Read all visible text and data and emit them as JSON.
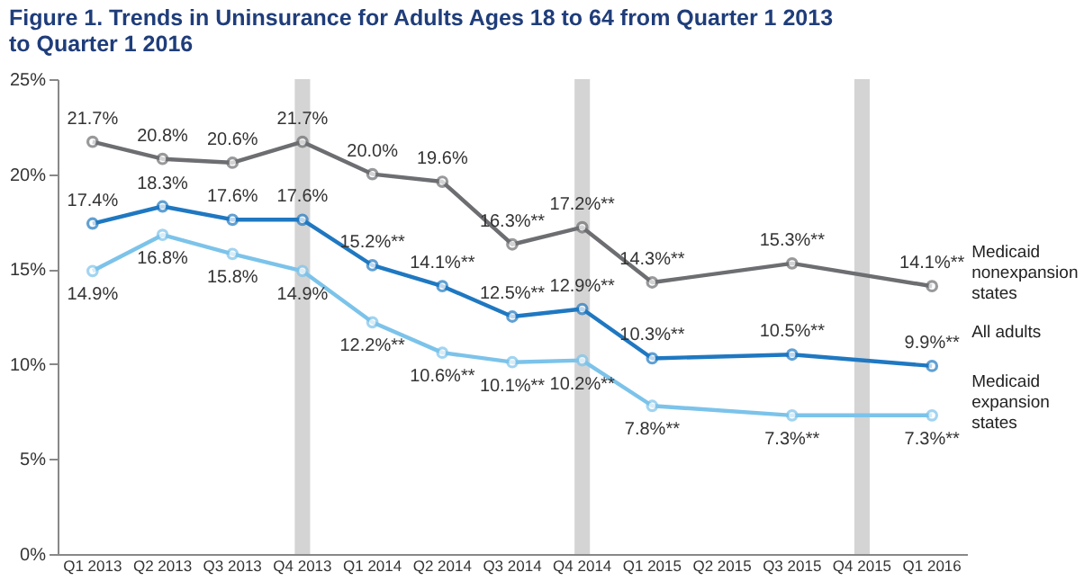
{
  "chart_data": {
    "type": "line",
    "title": "Figure 1. Trends in Uninsurance for Adults Ages 18 to 64 from Quarter 1 2013 to Quarter 1 2016",
    "categories": [
      "Q1 2013",
      "Q2 2013",
      "Q3 2013",
      "Q4 2013",
      "Q1 2014",
      "Q2 2014",
      "Q3 2014",
      "Q4 2014",
      "Q1 2015",
      "Q2 2015",
      "Q3 2015",
      "Q4 2015",
      "Q1 2016"
    ],
    "series": [
      {
        "name": "Medicaid nonexpansion states",
        "color": "#6d6e71",
        "values": [
          21.7,
          20.8,
          20.6,
          21.7,
          20.0,
          19.6,
          16.3,
          17.2,
          14.3,
          null,
          15.3,
          null,
          14.1
        ],
        "value_labels": [
          "21.7%",
          "20.8%",
          "20.6%",
          "21.7%",
          "20.0%",
          "19.6%",
          "16.3%**",
          "17.2%**",
          "14.3%**",
          null,
          "15.3%**",
          null,
          "14.1%**"
        ]
      },
      {
        "name": "All adults",
        "color": "#1f78c1",
        "values": [
          17.4,
          18.3,
          17.6,
          17.6,
          15.2,
          14.1,
          12.5,
          12.9,
          10.3,
          null,
          10.5,
          null,
          9.9
        ],
        "value_labels": [
          "17.4%",
          "18.3%",
          "17.6%",
          "17.6%",
          "15.2%**",
          "14.1%**",
          "12.5%**",
          "12.9%**",
          "10.3%**",
          null,
          "10.5%**",
          null,
          "9.9%**"
        ]
      },
      {
        "name": "Medicaid expansion states",
        "color": "#7cc3ea",
        "values": [
          14.9,
          16.8,
          15.8,
          14.9,
          12.2,
          10.6,
          10.1,
          10.2,
          7.8,
          null,
          7.3,
          null,
          7.3
        ],
        "value_labels": [
          "14.9%",
          "16.8%",
          "15.8%",
          "14.9%",
          "12.2%**",
          "10.6%**",
          "10.1%**",
          "10.2%**",
          "7.8%**",
          null,
          "7.3%**",
          null,
          "7.3%**"
        ]
      }
    ],
    "ylim": [
      0,
      25
    ],
    "yticks": [
      {
        "value": 0,
        "label": "0%"
      },
      {
        "value": 5,
        "label": "5%"
      },
      {
        "value": 10,
        "label": "10%"
      },
      {
        "value": 15,
        "label": "15%"
      },
      {
        "value": 20,
        "label": "20%"
      },
      {
        "value": 25,
        "label": "25%"
      }
    ],
    "bands": [
      {
        "axis": "x",
        "from": "Q4 2013",
        "to": "Q4 2013",
        "color": "#d4d4d4"
      },
      {
        "axis": "x",
        "from": "Q4 2014",
        "to": "Q4 2014",
        "color": "#d4d4d4"
      },
      {
        "axis": "x",
        "from": "Q4 2015",
        "to": "Q4 2015",
        "color": "#d4d4d4"
      }
    ],
    "marker": "circle"
  }
}
